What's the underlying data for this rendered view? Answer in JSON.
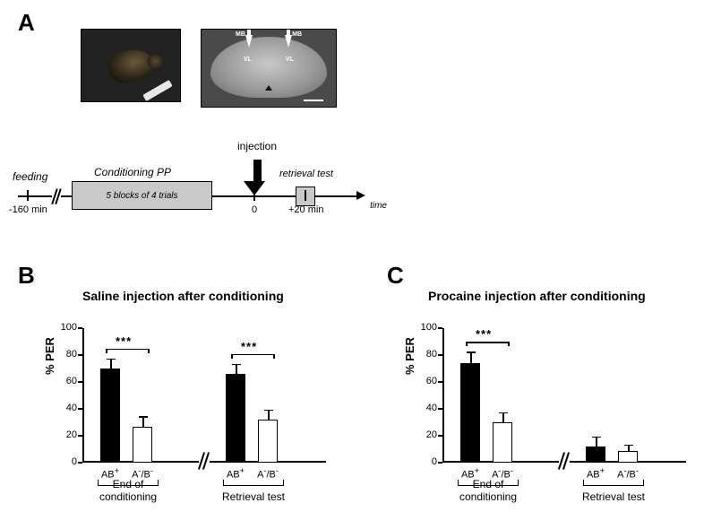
{
  "panels": {
    "A": "A",
    "B": "B",
    "C": "C"
  },
  "panelA": {
    "feeding": "feeding",
    "conditioning_title": "Conditioning PP",
    "conditioning_sub": "5 blocks of 4 trials",
    "injection": "injection",
    "retrieval": "retrieval test",
    "time": "time",
    "t_feed": "-160 min",
    "t_zero": "0",
    "t_retr": "+20 min",
    "brain_labels": {
      "mb_left": "MB",
      "mb_right": "MB",
      "vl_left": "VL",
      "vl_right": "VL"
    }
  },
  "chart_shared": {
    "ylabel": "% PER",
    "ylim": [
      0,
      100
    ],
    "ytick_step": 20,
    "bar_colors": {
      "filled": "#000000",
      "open": "#ffffff"
    },
    "bar_border": "#000000",
    "x_labels": {
      "ab_plus": "AB⁺",
      "a_b_minus": "A⁻/B⁻"
    },
    "groups": {
      "end": "End of\nconditioning",
      "retr": "Retrieval test"
    }
  },
  "panelB": {
    "title": "Saline injection after conditioning",
    "end": {
      "ab_plus": 70,
      "ab_plus_err": 7,
      "a_b_minus": 27,
      "a_b_minus_err": 7,
      "sig": "***"
    },
    "retr": {
      "ab_plus": 66,
      "ab_plus_err": 7,
      "a_b_minus": 32,
      "a_b_minus_err": 7,
      "sig": "***"
    }
  },
  "panelC": {
    "title": "Procaine injection after conditioning",
    "end": {
      "ab_plus": 74,
      "ab_plus_err": 8,
      "a_b_minus": 30,
      "a_b_minus_err": 7,
      "sig": "***"
    },
    "retr": {
      "ab_plus": 12,
      "ab_plus_err": 7,
      "a_b_minus": 9,
      "a_b_minus_err": 4,
      "sig": null
    }
  }
}
